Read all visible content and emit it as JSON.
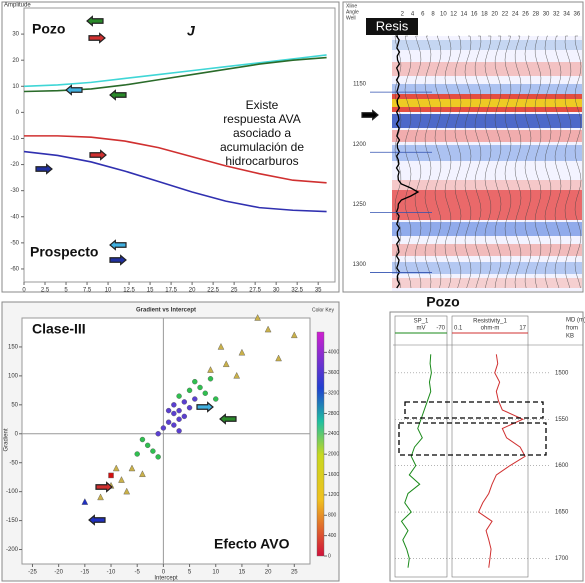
{
  "chart_data": [
    {
      "type": "line",
      "ylabel": "Amplitude",
      "x": [
        0,
        4,
        8,
        12,
        16,
        20,
        24,
        28,
        32,
        36
      ],
      "xlim": [
        0,
        37
      ],
      "xticks": [
        0,
        2.5,
        5,
        7.5,
        10,
        12.5,
        15,
        17.5,
        20,
        22.5,
        25,
        27.5,
        30,
        32.5,
        35
      ],
      "ylim": [
        -65,
        40
      ],
      "yticks": [
        30,
        20,
        10,
        0,
        -10,
        -20,
        -30,
        -40,
        -50,
        -60
      ],
      "series": [
        {
          "color": "#3fd6d6",
          "values": [
            10,
            10.5,
            11.5,
            13,
            14.5,
            16,
            17.5,
            19,
            20.5,
            22
          ]
        },
        {
          "color": "#2a6b2a",
          "values": [
            8,
            8.3,
            9,
            10.5,
            12.5,
            14.5,
            16.5,
            18.5,
            20,
            21
          ]
        },
        {
          "color": "#d03030",
          "values": [
            -9,
            -9,
            -9.5,
            -11,
            -13.5,
            -17,
            -20.5,
            -23.5,
            -26,
            -27
          ]
        },
        {
          "color": "#3030b0",
          "values": [
            -15,
            -16.5,
            -19,
            -22.5,
            -26.5,
            -30.5,
            -34,
            -36.5,
            -37.5,
            -38
          ]
        }
      ],
      "annotations": [
        "Pozo",
        "J",
        "Existe",
        "respuesta AVA",
        "asociado a",
        "acumulación  de",
        "hidrocarburos",
        "Prospecto"
      ]
    },
    {
      "type": "section",
      "title": "Resis",
      "header": [
        "Xline",
        "Angle",
        "Well"
      ],
      "xlim": [
        0,
        37
      ],
      "xticks": [
        2,
        4,
        6,
        8,
        10,
        12,
        14,
        16,
        18,
        20,
        22,
        24,
        26,
        28,
        30,
        32,
        34,
        36
      ],
      "ylim": [
        1110,
        1322
      ],
      "yticks": [
        1150,
        1200,
        1250,
        1300
      ]
    },
    {
      "type": "scatter",
      "title": "Gradient vs Intercept",
      "xlabel": "Intercept",
      "ylabel": "Gradient",
      "legend_title": "Color Key",
      "xlim": [
        -27,
        28
      ],
      "xticks": [
        -25,
        -20,
        -15,
        -10,
        -5,
        0,
        5,
        10,
        15,
        20,
        25
      ],
      "ylim": [
        -225,
        200
      ],
      "yticks": [
        150,
        100,
        50,
        0,
        -50,
        -100,
        -150,
        -200
      ],
      "colorbar": {
        "lim": [
          0,
          4400
        ],
        "ticks": [
          0,
          400,
          800,
          1200,
          1600,
          2000,
          2400,
          2800,
          3200,
          3600,
          4000
        ]
      },
      "series": [
        {
          "color": "#c9b04a",
          "marker": "triangle",
          "x": [
            -8,
            -10,
            12,
            15,
            20,
            -6,
            -12,
            18,
            25,
            11,
            -7,
            14,
            -9,
            22,
            9,
            -4
          ],
          "y": [
            -80,
            -90,
            120,
            140,
            180,
            -60,
            -110,
            200,
            170,
            150,
            -100,
            100,
            -60,
            130,
            110,
            -70
          ]
        },
        {
          "color": "#2fbf4f",
          "marker": "circle",
          "x": [
            -3,
            7,
            8,
            -2,
            6,
            -4,
            9,
            5,
            -1,
            10,
            3,
            -5
          ],
          "y": [
            -20,
            80,
            70,
            -30,
            90,
            -10,
            95,
            75,
            -40,
            60,
            65,
            -35
          ]
        },
        {
          "color": "#5a3fd0",
          "marker": "circle",
          "x": [
            1,
            2,
            3,
            0,
            4,
            2,
            5,
            3,
            1,
            4,
            6,
            -1,
            2,
            3
          ],
          "y": [
            20,
            35,
            40,
            10,
            55,
            15,
            45,
            25,
            40,
            30,
            60,
            0,
            50,
            5
          ]
        },
        {
          "color": "#d01010",
          "marker": "square",
          "x": [
            -10
          ],
          "y": [
            -72
          ]
        },
        {
          "color": "#2030c0",
          "marker": "triangle",
          "x": [
            -15
          ],
          "y": [
            -118
          ]
        }
      ],
      "annotations": [
        "Clase-III",
        "Efecto AVO"
      ]
    },
    {
      "type": "log",
      "title": "Pozo",
      "depth_header": [
        "MD (m)",
        "from",
        "KB"
      ],
      "x": [
        1480,
        1490,
        1500,
        1510,
        1520,
        1530,
        1540,
        1550,
        1560,
        1570,
        1580,
        1590,
        1600,
        1610,
        1620,
        1630,
        1640,
        1650,
        1660,
        1670,
        1680,
        1690,
        1700,
        1710
      ],
      "ylim": [
        1470,
        1720
      ],
      "yticks": [
        1500,
        1550,
        1600,
        1650,
        1700
      ],
      "series": [
        {
          "name": "SP_1",
          "unit": "mV",
          "color": "#1a8a1a",
          "xlim": [
            -150,
            -70
          ],
          "scale_label": "-70",
          "values": [
            -95,
            -96,
            -94,
            -97,
            -95,
            -100,
            -105,
            -110,
            -115,
            -108,
            -120,
            -125,
            -118,
            -128,
            -112,
            -130,
            -135,
            -125,
            -140,
            -130,
            -138,
            -132,
            -128,
            -130
          ]
        },
        {
          "name": "Resistivity_1",
          "unit": "ohm-m",
          "color": "#d03030",
          "xlim": [
            0.1,
            17
          ],
          "xscale": "log",
          "scale_label": [
            "0.1",
            "17"
          ],
          "values": [
            2,
            2.2,
            1.8,
            2.5,
            2,
            2.3,
            3,
            12,
            3,
            4,
            10,
            14,
            5,
            2,
            1.5,
            1.2,
            0.8,
            0.6,
            1.5,
            1,
            1.2,
            1.4,
            1.3,
            1.2
          ]
        }
      ]
    }
  ]
}
